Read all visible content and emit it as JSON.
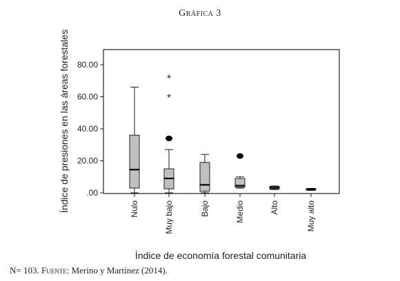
{
  "figure": {
    "title": "Gráfica 3",
    "note_prefix": "N= 103.",
    "note_source_label": "Fuente:",
    "note_source_text": "Merino y Martínez (2014)."
  },
  "chart_data": {
    "type": "boxplot",
    "title": "",
    "xlabel": "Índice de economía forestal comunitaria",
    "ylabel": "Índice de presiones en las áreas forestales",
    "ylim": [
      0,
      80
    ],
    "yticks": [
      0,
      20,
      40,
      60,
      80
    ],
    "ytick_labels": [
      ".00",
      "20.00",
      "40.00",
      "60.00",
      "80.00"
    ],
    "grid": false,
    "box_color": "#c0c0c0",
    "categories": [
      "Nulo",
      "Muy bajo",
      "Bajo",
      "Medio",
      "Alto",
      "Muy alto"
    ],
    "boxes": [
      {
        "category": "Nulo",
        "min": 0,
        "q1": 3,
        "median": 14.5,
        "q3": 36,
        "max": 66,
        "outliers": [],
        "extremes": []
      },
      {
        "category": "Muy bajo",
        "min": 0,
        "q1": 2.5,
        "median": 9,
        "q3": 15,
        "max": 27,
        "outliers": [
          34
        ],
        "extremes": [
          60,
          72
        ]
      },
      {
        "category": "Bajo",
        "min": 0,
        "q1": 1,
        "median": 5,
        "q3": 19,
        "max": 24,
        "outliers": [],
        "extremes": []
      },
      {
        "category": "Medio",
        "min": 3,
        "q1": 3.5,
        "median": 4.5,
        "q3": 9,
        "max": 10,
        "outliers": [
          23
        ],
        "extremes": []
      },
      {
        "category": "Alto",
        "min": 2,
        "q1": 2.5,
        "median": 3.2,
        "q3": 4,
        "max": 4.3,
        "outliers": [],
        "extremes": []
      },
      {
        "category": "Muy alto",
        "min": 1.5,
        "q1": 1.8,
        "median": 2.2,
        "q3": 2.6,
        "max": 2.8,
        "outliers": [],
        "extremes": []
      }
    ]
  }
}
